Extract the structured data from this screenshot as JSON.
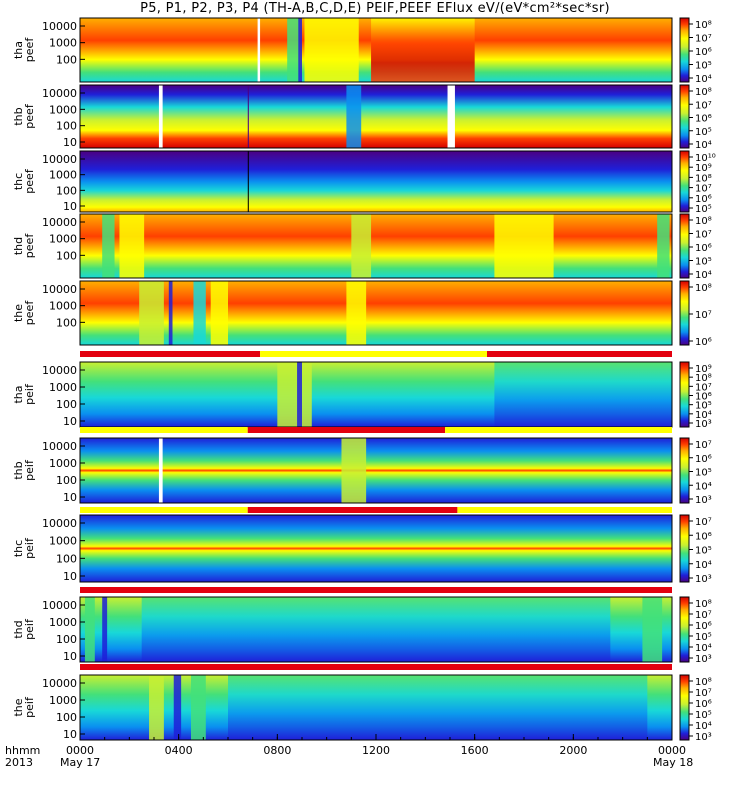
{
  "title": "P5, P1, P2, P3, P4 (TH-A,B,C,D,E) PEIF,PEEF EFlux eV/(eV*cm²*sec*sr)",
  "colors": {
    "colormap": [
      "#4b0082",
      "#1f1fd8",
      "#0a8ff0",
      "#18d8d8",
      "#43e07a",
      "#c8f032",
      "#ffff00",
      "#ffb000",
      "#ff4000",
      "#d40000"
    ],
    "bar_red": "#e3000f",
    "bar_yellow": "#ffff00",
    "gap": "#ffffff"
  },
  "chart_data": [
    {
      "type": "heatmap",
      "panel": "thapeef",
      "ylabel_lines": [
        "tha",
        "peef"
      ],
      "yticks": [
        "10000",
        "1000",
        "100"
      ],
      "ylog": true,
      "cbar_labels": [
        "10⁸",
        "10⁷",
        "10⁶",
        "10⁵",
        "10⁴"
      ]
    },
    {
      "type": "heatmap",
      "panel": "thbpeef",
      "ylabel_lines": [
        "thb",
        "peef"
      ],
      "yticks": [
        "10000",
        "1000",
        "100",
        "10"
      ],
      "ylog": true,
      "cbar_labels": [
        "10⁸",
        "10⁷",
        "10⁶",
        "10⁵",
        "10⁴"
      ]
    },
    {
      "type": "heatmap",
      "panel": "thcpeef",
      "ylabel_lines": [
        "thc",
        "peef"
      ],
      "yticks": [
        "10000",
        "1000",
        "100",
        "10"
      ],
      "ylog": true,
      "cbar_labels": [
        "10¹⁰",
        "10⁹",
        "10⁸",
        "10⁷",
        "10⁶",
        "10⁵"
      ]
    },
    {
      "type": "heatmap",
      "panel": "thdpeef",
      "ylabel_lines": [
        "thd",
        "peef"
      ],
      "yticks": [
        "10000",
        "1000",
        "100"
      ],
      "ylog": true,
      "cbar_labels": [
        "10⁸",
        "10⁷",
        "10⁶",
        "10⁵",
        "10⁴"
      ]
    },
    {
      "type": "heatmap",
      "panel": "thepeef",
      "ylabel_lines": [
        "the",
        "peef"
      ],
      "yticks": [
        "10000",
        "1000",
        "100"
      ],
      "ylog": true,
      "cbar_labels": [
        "10⁸",
        "10⁷",
        "10⁶"
      ]
    },
    {
      "type": "heatmap",
      "panel": "thapeif",
      "ylabel_lines": [
        "tha",
        "peif"
      ],
      "yticks": [
        "10000",
        "1000",
        "100",
        "10"
      ],
      "ylog": true,
      "cbar_labels": [
        "10⁹",
        "10⁸",
        "10⁷",
        "10⁶",
        "10⁵",
        "10⁴",
        "10³"
      ]
    },
    {
      "type": "heatmap",
      "panel": "thbpeif",
      "ylabel_lines": [
        "thb",
        "peif"
      ],
      "yticks": [
        "10000",
        "1000",
        "100",
        "10"
      ],
      "ylog": true,
      "cbar_labels": [
        "10⁷",
        "10⁶",
        "10⁵",
        "10⁴",
        "10³"
      ]
    },
    {
      "type": "heatmap",
      "panel": "thcpeif",
      "ylabel_lines": [
        "thc",
        "peif"
      ],
      "yticks": [
        "10000",
        "1000",
        "100",
        "10"
      ],
      "ylog": true,
      "cbar_labels": [
        "10⁷",
        "10⁶",
        "10⁵",
        "10⁴",
        "10³"
      ]
    },
    {
      "type": "heatmap",
      "panel": "thdpeif",
      "ylabel_lines": [
        "thd",
        "peif"
      ],
      "yticks": [
        "10000",
        "1000",
        "100",
        "10"
      ],
      "ylog": true,
      "cbar_labels": [
        "10⁸",
        "10⁷",
        "10⁶",
        "10⁵",
        "10⁴",
        "10³"
      ]
    },
    {
      "type": "heatmap",
      "panel": "thepeif",
      "ylabel_lines": [
        "the",
        "peif"
      ],
      "yticks": [
        "10000",
        "1000",
        "100",
        "10"
      ],
      "ylog": true,
      "cbar_labels": [
        "10⁸",
        "10⁷",
        "10⁶",
        "10⁵",
        "10⁴",
        "10³"
      ]
    }
  ],
  "xaxis": {
    "row1_label": "hhmm",
    "row2_label": "2013",
    "ticks": [
      "0000",
      "0400",
      "0800",
      "1200",
      "1600",
      "2000",
      "0000"
    ],
    "tick_hours": [
      0,
      4,
      8,
      12,
      16,
      20,
      24
    ],
    "date_start": "May 17",
    "date_end": "May 18",
    "minor_step_hours": 1
  },
  "mode_bars": [
    {
      "segments": [
        {
          "from": 0,
          "to": 7.3,
          "color": "red"
        },
        {
          "from": 7.3,
          "to": 16.5,
          "color": "yellow"
        },
        {
          "from": 16.5,
          "to": 24,
          "color": "red"
        }
      ]
    },
    {
      "segments": [
        {
          "from": 0,
          "to": 6.8,
          "color": "yellow"
        },
        {
          "from": 6.8,
          "to": 14.8,
          "color": "red"
        },
        {
          "from": 14.8,
          "to": 24,
          "color": "yellow"
        }
      ]
    },
    {
      "segments": [
        {
          "from": 0,
          "to": 6.8,
          "color": "yellow"
        },
        {
          "from": 6.8,
          "to": 15.3,
          "color": "red"
        },
        {
          "from": 15.3,
          "to": 24,
          "color": "yellow"
        }
      ]
    },
    {
      "segments": [
        {
          "from": 0,
          "to": 24,
          "color": "red"
        }
      ]
    },
    {
      "segments": [
        {
          "from": 0,
          "to": 24,
          "color": "red"
        }
      ]
    }
  ]
}
